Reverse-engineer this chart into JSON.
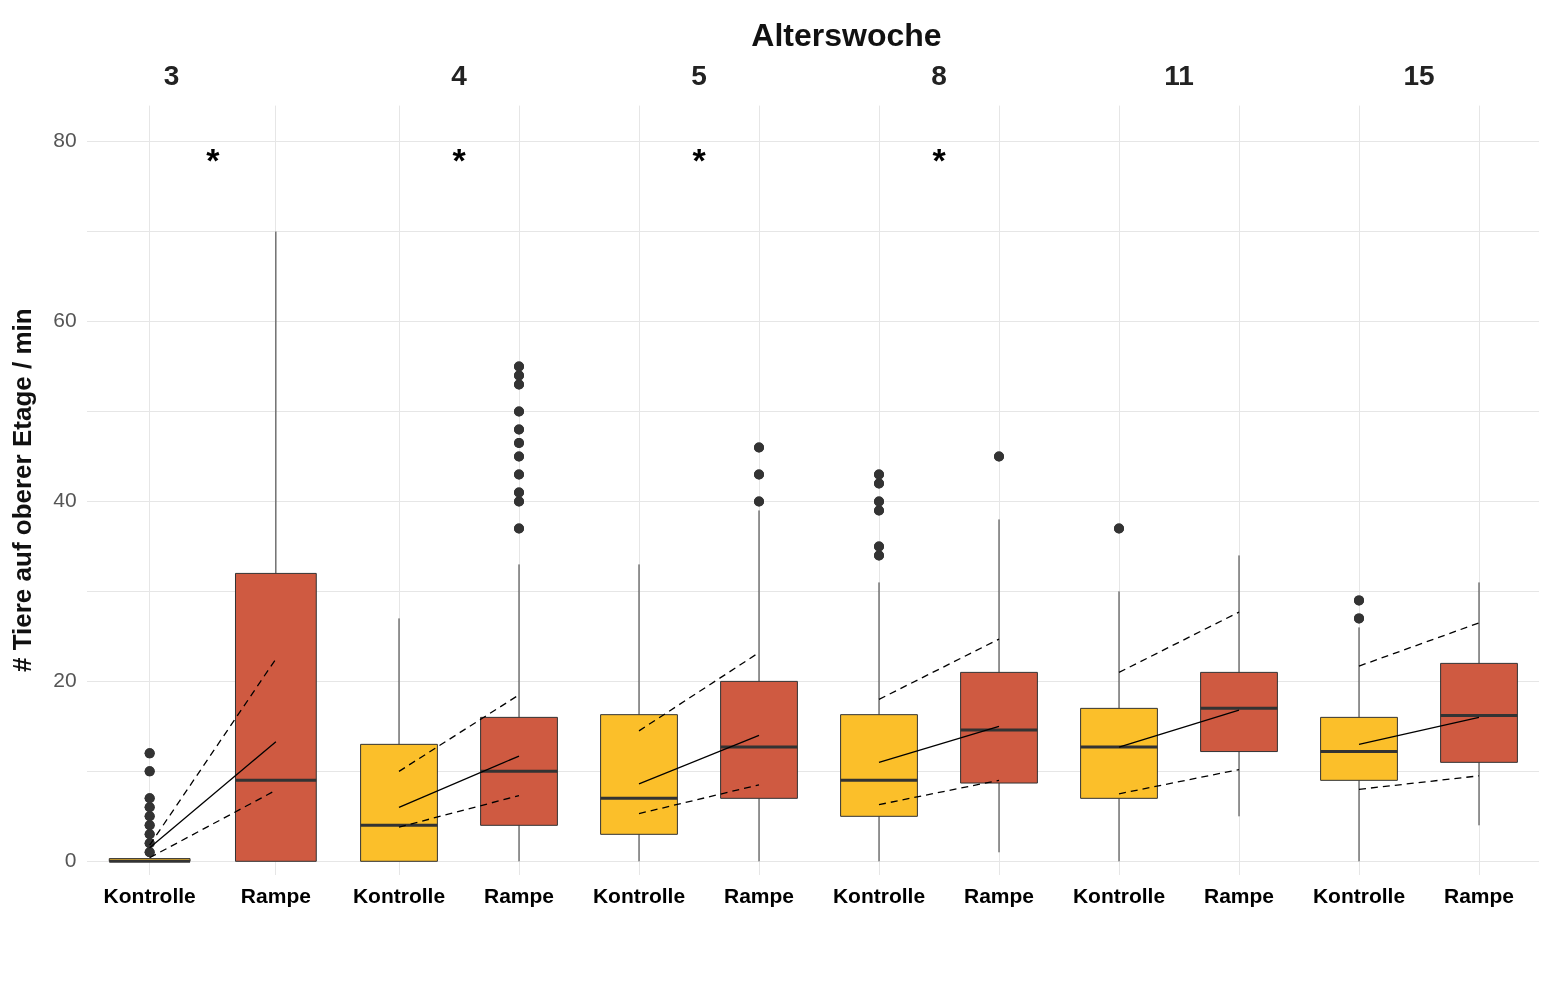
{
  "chart_data": [
    {
      "type": "box",
      "title": "3",
      "ylabel": "# Tiere auf oberer Etage / min",
      "categories": [
        "Kontrolle",
        "Rampe"
      ],
      "colors": [
        "#fbbf2a",
        "#cf5a41"
      ],
      "ylim": [
        -1.5,
        84
      ],
      "yticks": [
        0,
        {
          "value": 10,
          "label": null
        },
        20,
        {
          "value": 30,
          "label": null
        },
        40,
        {
          "value": 50,
          "label": null
        },
        60,
        {
          "value": 70,
          "label": null
        },
        80
      ],
      "grid": true,
      "marker": "circle",
      "legend": false,
      "annotations": [
        "Alterswoche",
        "*"
      ],
      "boxes": [
        {
          "low": 0,
          "q1": 0,
          "median": 0,
          "q3": 0.3,
          "high": 0.3,
          "outliers": [
            1,
            2,
            3,
            4,
            5,
            6,
            7,
            10,
            12
          ]
        },
        {
          "low": 0,
          "q1": 0,
          "median": 9,
          "q3": 32,
          "high": 70
        }
      ],
      "series": [
        {
          "type": "line",
          "values": [
            1.5,
            13.3
          ],
          "color": "#000000",
          "line_style": "solid",
          "marker": "none"
        },
        {
          "type": "line",
          "values": [
            1.8,
            22.5
          ],
          "color": "#000000",
          "line_style": "dashed",
          "marker": "none"
        },
        {
          "type": "line",
          "values": [
            0.4,
            7.9
          ],
          "color": "#000000",
          "line_style": "dashed",
          "marker": "none"
        }
      ]
    },
    {
      "type": "box",
      "title": "4",
      "categories": [
        "Kontrolle",
        "Rampe"
      ],
      "colors": [
        "#fbbf2a",
        "#cf5a41"
      ],
      "ylim": [
        -1.5,
        84
      ],
      "yticks": [
        0,
        {
          "value": 10,
          "label": null
        },
        20,
        {
          "value": 30,
          "label": null
        },
        40,
        {
          "value": 50,
          "label": null
        },
        60,
        {
          "value": 70,
          "label": null
        },
        80
      ],
      "tick_labels": "x",
      "grid": true,
      "marker": "circle",
      "legend": false,
      "annotations": [
        "*"
      ],
      "boxes": [
        {
          "low": 0,
          "q1": 0,
          "median": 4,
          "q3": 13,
          "high": 27
        },
        {
          "low": 0,
          "q1": 4,
          "median": 10,
          "q3": 16,
          "high": 33,
          "outliers": [
            37,
            40,
            41,
            43,
            45,
            46.5,
            48,
            50,
            53,
            54,
            55
          ]
        }
      ],
      "series": [
        {
          "type": "line",
          "values": [
            6,
            11.7
          ],
          "color": "#000000",
          "line_style": "solid",
          "marker": "none"
        },
        {
          "type": "line",
          "values": [
            10,
            18.5
          ],
          "color": "#000000",
          "line_style": "dashed",
          "marker": "none"
        },
        {
          "type": "line",
          "values": [
            3.8,
            7.3
          ],
          "color": "#000000",
          "line_style": "dashed",
          "marker": "none"
        }
      ]
    },
    {
      "type": "box",
      "title": "5",
      "categories": [
        "Kontrolle",
        "Rampe"
      ],
      "colors": [
        "#fbbf2a",
        "#cf5a41"
      ],
      "ylim": [
        -1.5,
        84
      ],
      "yticks": [
        0,
        {
          "value": 10,
          "label": null
        },
        20,
        {
          "value": 30,
          "label": null
        },
        40,
        {
          "value": 50,
          "label": null
        },
        60,
        {
          "value": 70,
          "label": null
        },
        80
      ],
      "tick_labels": "x",
      "grid": true,
      "marker": "circle",
      "legend": false,
      "annotations": [
        "*"
      ],
      "boxes": [
        {
          "low": 0,
          "q1": 3,
          "median": 7,
          "q3": 16.3,
          "high": 33
        },
        {
          "low": 0,
          "q1": 7,
          "median": 12.7,
          "q3": 20,
          "high": 39,
          "outliers": [
            40,
            43,
            46
          ]
        }
      ],
      "series": [
        {
          "type": "line",
          "values": [
            8.6,
            14
          ],
          "color": "#000000",
          "line_style": "solid",
          "marker": "none"
        },
        {
          "type": "line",
          "values": [
            14.5,
            23.2
          ],
          "color": "#000000",
          "line_style": "dashed",
          "marker": "none"
        },
        {
          "type": "line",
          "values": [
            5.3,
            8.5
          ],
          "color": "#000000",
          "line_style": "dashed",
          "marker": "none"
        }
      ]
    },
    {
      "type": "box",
      "title": "8",
      "categories": [
        "Kontrolle",
        "Rampe"
      ],
      "colors": [
        "#fbbf2a",
        "#cf5a41"
      ],
      "ylim": [
        -1.5,
        84
      ],
      "yticks": [
        0,
        {
          "value": 10,
          "label": null
        },
        20,
        {
          "value": 30,
          "label": null
        },
        40,
        {
          "value": 50,
          "label": null
        },
        60,
        {
          "value": 70,
          "label": null
        },
        80
      ],
      "tick_labels": "x",
      "grid": true,
      "marker": "circle",
      "legend": false,
      "annotations": [
        "*"
      ],
      "boxes": [
        {
          "low": 0,
          "q1": 5,
          "median": 9,
          "q3": 16.3,
          "high": 31,
          "outliers": [
            34,
            35,
            39,
            40,
            42,
            43
          ]
        },
        {
          "low": 1,
          "q1": 8.7,
          "median": 14.6,
          "q3": 21,
          "high": 38,
          "outliers": [
            45
          ]
        }
      ],
      "series": [
        {
          "type": "line",
          "values": [
            11,
            15
          ],
          "color": "#000000",
          "line_style": "solid",
          "marker": "none"
        },
        {
          "type": "line",
          "values": [
            18,
            24.7
          ],
          "color": "#000000",
          "line_style": "dashed",
          "marker": "none"
        },
        {
          "type": "line",
          "values": [
            6.3,
            9
          ],
          "color": "#000000",
          "line_style": "dashed",
          "marker": "none"
        }
      ]
    },
    {
      "type": "box",
      "title": "11",
      "categories": [
        "Kontrolle",
        "Rampe"
      ],
      "colors": [
        "#fbbf2a",
        "#cf5a41"
      ],
      "ylim": [
        -1.5,
        84
      ],
      "yticks": [
        0,
        {
          "value": 10,
          "label": null
        },
        20,
        {
          "value": 30,
          "label": null
        },
        40,
        {
          "value": 50,
          "label": null
        },
        60,
        {
          "value": 70,
          "label": null
        },
        80
      ],
      "tick_labels": "x",
      "grid": true,
      "marker": "circle",
      "legend": false,
      "boxes": [
        {
          "low": 0,
          "q1": 7,
          "median": 12.7,
          "q3": 17,
          "high": 30,
          "outliers": [
            37
          ]
        },
        {
          "low": 5,
          "q1": 12.2,
          "median": 17,
          "q3": 21,
          "high": 34
        }
      ],
      "series": [
        {
          "type": "line",
          "values": [
            12.7,
            16.8
          ],
          "color": "#000000",
          "line_style": "solid",
          "marker": "none"
        },
        {
          "type": "line",
          "values": [
            21,
            27.7
          ],
          "color": "#000000",
          "line_style": "dashed",
          "marker": "none"
        },
        {
          "type": "line",
          "values": [
            7.5,
            10.2
          ],
          "color": "#000000",
          "line_style": "dashed",
          "marker": "none"
        }
      ]
    },
    {
      "type": "box",
      "title": "15",
      "categories": [
        "Kontrolle",
        "Rampe"
      ],
      "colors": [
        "#fbbf2a",
        "#cf5a41"
      ],
      "ylim": [
        -1.5,
        84
      ],
      "yticks": [
        0,
        {
          "value": 10,
          "label": null
        },
        20,
        {
          "value": 30,
          "label": null
        },
        40,
        {
          "value": 50,
          "label": null
        },
        60,
        {
          "value": 70,
          "label": null
        },
        80
      ],
      "tick_labels": "x",
      "grid": true,
      "marker": "circle",
      "legend": false,
      "boxes": [
        {
          "low": 0,
          "q1": 9,
          "median": 12.2,
          "q3": 16,
          "high": 26,
          "outliers": [
            27,
            29
          ]
        },
        {
          "low": 4,
          "q1": 11,
          "median": 16.2,
          "q3": 22,
          "high": 31
        }
      ],
      "series": [
        {
          "type": "line",
          "values": [
            13,
            16
          ],
          "color": "#000000",
          "line_style": "solid",
          "marker": "none"
        },
        {
          "type": "line",
          "values": [
            21.7,
            26.5
          ],
          "color": "#000000",
          "line_style": "dashed",
          "marker": "none"
        },
        {
          "type": "line",
          "values": [
            8,
            9.5
          ],
          "color": "#000000",
          "line_style": "dashed",
          "marker": "none"
        }
      ]
    }
  ]
}
